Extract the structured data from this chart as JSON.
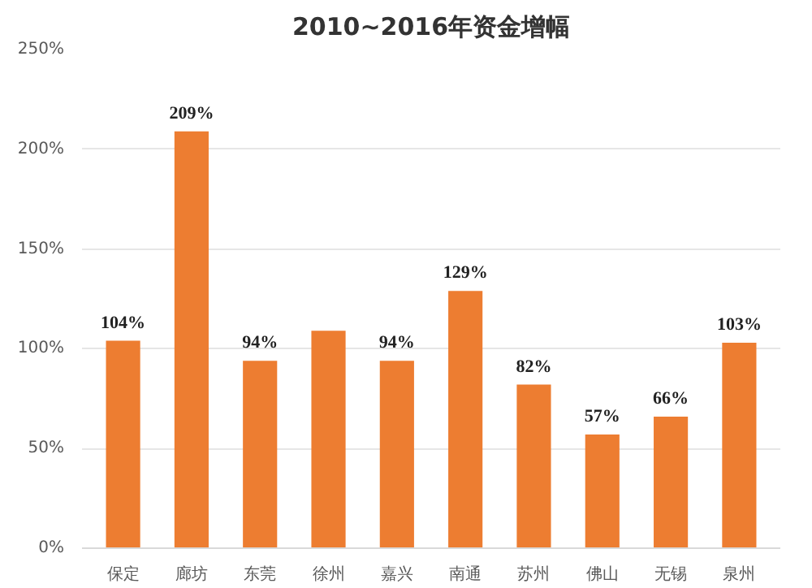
{
  "chart_data": {
    "type": "bar",
    "title": "2010~2016年资金增幅",
    "categories": [
      "保定",
      "廊坊",
      "东莞",
      "徐州",
      "嘉兴",
      "南通",
      "苏州",
      "佛山",
      "无锡",
      "泉州"
    ],
    "values": [
      104,
      209,
      94,
      109,
      94,
      129,
      82,
      57,
      66,
      103
    ],
    "value_labels": [
      "104%",
      "209%",
      "94%",
      null,
      "94%",
      "129%",
      "82%",
      "57%",
      "66%",
      "103%"
    ],
    "color": "#ed7d31",
    "ylim": [
      0,
      250
    ],
    "yticks": [
      {
        "value": 0,
        "label": "0%"
      },
      {
        "value": 50,
        "label": "50%"
      },
      {
        "value": 100,
        "label": "100%"
      },
      {
        "value": 150,
        "label": "150%"
      },
      {
        "value": 200,
        "label": "200%"
      },
      {
        "value": 250,
        "label": "250%"
      }
    ],
    "grid": "y"
  }
}
